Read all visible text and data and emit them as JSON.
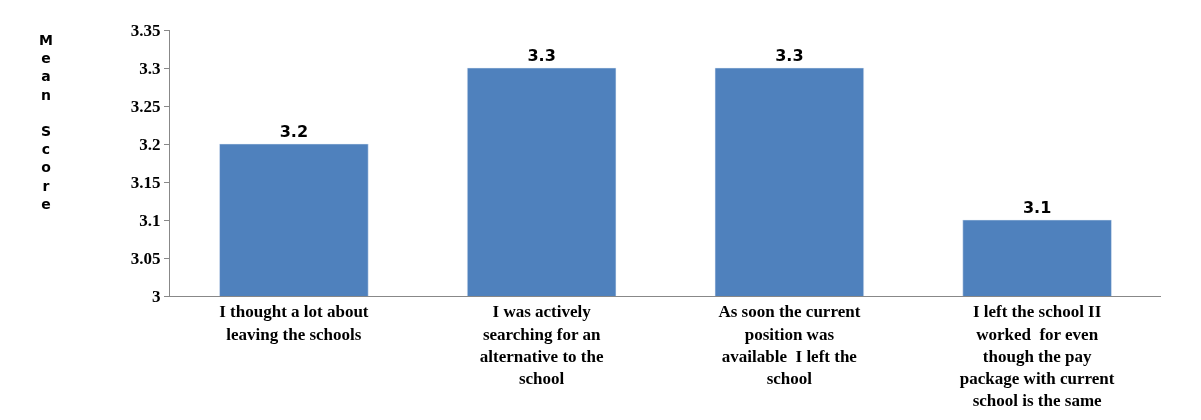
{
  "chart_data": {
    "type": "bar",
    "ylabel": "Mean Score",
    "categories": [
      "I thought a lot about leaving the schools",
      "I was actively searching for an alternative to the school",
      "As soon the current position was available  I left the school",
      "I left the school II worked  for even though the pay package with current school is the same"
    ],
    "values": [
      3.2,
      3.3,
      3.3,
      3.1
    ],
    "color": "#4f81bd",
    "ylim": [
      3,
      3.35
    ],
    "yticks": [
      3,
      3.05,
      3.1,
      3.15,
      3.2,
      3.25,
      3.3,
      3.35
    ],
    "legend": false,
    "data_labels": true
  }
}
